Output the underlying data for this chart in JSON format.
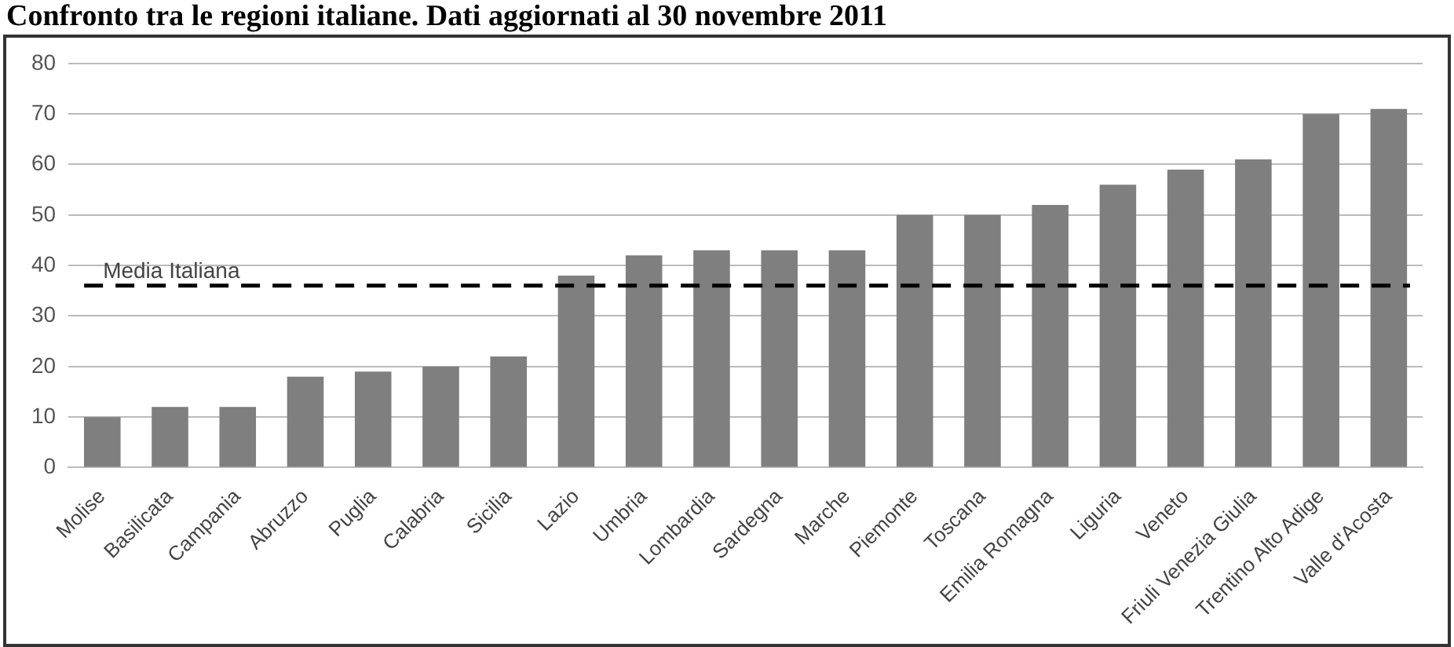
{
  "chart_data": {
    "type": "bar",
    "title": "Confronto tra le regioni italiane. Dati aggiornati al 30 novembre 2011",
    "categories": [
      "Molise",
      "Basilicata",
      "Campania",
      "Abruzzo",
      "Puglia",
      "Calabria",
      "Sicilia",
      "Lazio",
      "Umbria",
      "Lombardia",
      "Sardegna",
      "Marche",
      "Piemonte",
      "Toscana",
      "Emilia Romagna",
      "Liguria",
      "Veneto",
      "Friuli Venezia Giulia",
      "Trentino Alto Adige",
      "Valle d'Acosta"
    ],
    "values": [
      10,
      12,
      12,
      18,
      19,
      20,
      22,
      38,
      42,
      43,
      43,
      43,
      50,
      50,
      52,
      56,
      59,
      61,
      70,
      71
    ],
    "color": "#7f7f7f",
    "ylim": [
      0,
      80
    ],
    "yticks": [
      0,
      10,
      20,
      30,
      40,
      50,
      60,
      70,
      80
    ],
    "grid": "y",
    "ref_lines": [
      {
        "axis": "y",
        "value": 36,
        "label": "Media Italiana",
        "color": "#000000",
        "line_style": "dashed"
      }
    ]
  }
}
